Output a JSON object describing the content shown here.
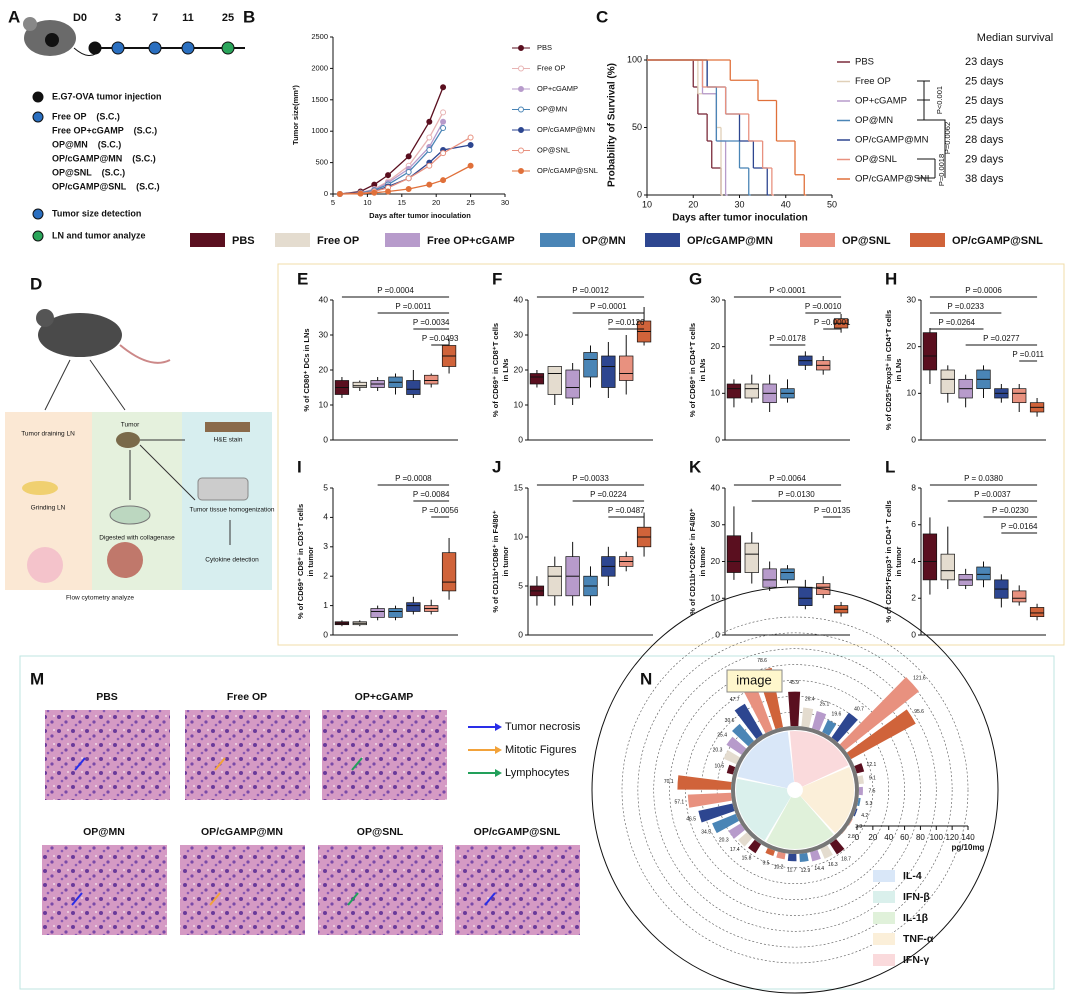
{
  "panel_labels": [
    "A",
    "B",
    "C",
    "D",
    "M",
    "N"
  ],
  "groups": [
    {
      "name": "PBS",
      "color": "#5a0f1f"
    },
    {
      "name": "Free OP",
      "color": "#e4dccf"
    },
    {
      "name": "Free OP+cGAMP",
      "color": "#b79bcb"
    },
    {
      "name": "OP@MN",
      "color": "#4a85b6"
    },
    {
      "name": "OP/cGAMP@MN",
      "color": "#2d4690"
    },
    {
      "name": "OP@SNL",
      "color": "#e8917f"
    },
    {
      "name": "OP/cGAMP@SNL",
      "color": "#d0633a"
    }
  ],
  "panel_a": {
    "timeline": [
      "D0",
      "3",
      "7",
      "11",
      "25"
    ],
    "legend": [
      "E.G7-OVA tumor injection",
      "Free OP    (S.C.)",
      "Free OP+cGAMP    (S.C.)",
      "OP@MN    (S.C.)",
      "OP/cGAMP@MN    (S.C.)",
      "OP@SNL    (S.C.)",
      "OP/cGAMP@SNL    (S.C.)",
      "Tumor size detection",
      "LN and tumor analyze"
    ]
  },
  "panel_b": {
    "type": "line",
    "ylabel": "Tumor size(mm³)",
    "xlabel": "Days after tumor inoculation",
    "x": [
      6,
      9,
      11,
      13,
      16,
      19,
      21,
      25
    ],
    "xlim": [
      5,
      30
    ],
    "xticks": [
      5,
      10,
      15,
      20,
      25,
      30
    ],
    "ylim": [
      0,
      2500
    ],
    "yticks": [
      0,
      500,
      1000,
      1500,
      2000,
      2500
    ],
    "series": [
      {
        "name": "PBS",
        "color": "#5a0f1f",
        "open": false,
        "values": [
          0,
          40,
          150,
          300,
          600,
          1150,
          1700,
          null
        ]
      },
      {
        "name": "Free OP",
        "color": "#e8b4b4",
        "open": true,
        "values": [
          0,
          20,
          80,
          200,
          450,
          900,
          1300,
          null
        ]
      },
      {
        "name": "OP+cGAMP",
        "color": "#b79bcb",
        "open": false,
        "values": [
          0,
          20,
          70,
          180,
          400,
          750,
          1150,
          null
        ]
      },
      {
        "name": "OP@MN",
        "color": "#4a85b6",
        "open": true,
        "values": [
          0,
          15,
          60,
          150,
          350,
          700,
          1050,
          null
        ]
      },
      {
        "name": "OP/cGAMP@MN",
        "color": "#2d4690",
        "open": false,
        "values": [
          0,
          10,
          40,
          120,
          250,
          500,
          700,
          780
        ]
      },
      {
        "name": "OP@SNL",
        "color": "#e8917f",
        "open": true,
        "values": [
          0,
          10,
          40,
          100,
          250,
          450,
          650,
          900
        ]
      },
      {
        "name": "OP/cGAMP@SNL",
        "color": "#e0703a",
        "open": false,
        "values": [
          0,
          5,
          20,
          40,
          80,
          150,
          220,
          450
        ]
      }
    ]
  },
  "panel_c": {
    "type": "survival",
    "ylabel": "Probability of Survival  (%)",
    "xlabel": "Days after tumor inoculation",
    "xlim": [
      10,
      50
    ],
    "xticks": [
      10,
      20,
      30,
      40,
      50
    ],
    "ylim": [
      0,
      100
    ],
    "yticks": [
      0,
      50,
      100
    ],
    "series": [
      {
        "name": "PBS",
        "color": "#7a2a3a",
        "x": [
          10,
          20,
          21,
          23,
          24,
          26
        ],
        "values": [
          100,
          80,
          60,
          40,
          20,
          0
        ]
      },
      {
        "name": "Free OP",
        "color": "#e0d0b8",
        "x": [
          10,
          21,
          25,
          26
        ],
        "values": [
          100,
          75,
          50,
          0
        ]
      },
      {
        "name": "OP+cGAMP",
        "color": "#b79bcb",
        "x": [
          10,
          22,
          25,
          27
        ],
        "values": [
          100,
          75,
          40,
          0
        ]
      },
      {
        "name": "OP@MN",
        "color": "#4a85b6",
        "x": [
          10,
          23,
          25,
          30,
          32
        ],
        "values": [
          100,
          80,
          40,
          20,
          0
        ]
      },
      {
        "name": "OP/cGAMP@MN",
        "color": "#2d4690",
        "x": [
          10,
          23,
          27,
          30,
          33,
          36
        ],
        "values": [
          100,
          80,
          60,
          40,
          20,
          0
        ]
      },
      {
        "name": "OP@SNL",
        "color": "#e8917f",
        "x": [
          10,
          22,
          27,
          32,
          35,
          37
        ],
        "values": [
          100,
          80,
          60,
          40,
          20,
          0
        ]
      },
      {
        "name": "OP/cGAMP@SNL",
        "color": "#e0703a",
        "x": [
          10,
          28,
          34,
          38,
          42,
          44
        ],
        "values": [
          100,
          85,
          70,
          40,
          15,
          0
        ]
      }
    ],
    "median_title": "Median survival",
    "median": [
      "23 days",
      "25 days",
      "25 days",
      "25 days",
      "28 days",
      "29 days",
      "38 days"
    ],
    "pvalues": [
      "P<0.001",
      "P=0.0062",
      "P=0.0018"
    ]
  },
  "panel_d": {
    "label": "D",
    "texts": [
      "Tumor draining LN",
      "Grinding LN",
      "Tumor",
      "Digested with collagenase",
      "H&E stain",
      "Tumor tissue homogenization",
      "Cytokine detection",
      "Flow cytometry analyze"
    ]
  },
  "box_panels": [
    {
      "label": "E",
      "type": "box",
      "ylabel": [
        "% of CD80⁺ DCs in LNs"
      ],
      "ylim": [
        0,
        40
      ],
      "yticks": [
        0,
        10,
        20,
        30,
        40
      ],
      "boxes": [
        [
          12,
          13,
          15,
          17,
          18
        ],
        [
          14,
          15,
          15.5,
          16.5,
          17
        ],
        [
          14,
          15,
          16,
          17,
          18
        ],
        [
          13,
          15,
          16.5,
          18,
          19
        ],
        [
          12,
          13,
          14.5,
          17,
          20
        ],
        [
          15,
          16,
          17,
          18.5,
          19
        ],
        [
          19,
          21,
          24,
          27,
          29
        ]
      ],
      "pvalues": [
        "P =0.0004",
        "P =0.0011",
        "P =0.0034",
        "P =0.0493"
      ]
    },
    {
      "label": "F",
      "type": "box",
      "ylabel": [
        "% of CD69⁺ in CD8⁺T cells",
        "in LNs"
      ],
      "ylim": [
        0,
        40
      ],
      "yticks": [
        0,
        10,
        20,
        30,
        40
      ],
      "boxes": [
        [
          15,
          16,
          18,
          19,
          20
        ],
        [
          10,
          13,
          19,
          21,
          21
        ],
        [
          10,
          12,
          15,
          20,
          22
        ],
        [
          15,
          18,
          23,
          25,
          27
        ],
        [
          12,
          15,
          21,
          24,
          28
        ],
        [
          13,
          17,
          19,
          24,
          30
        ],
        [
          27,
          28,
          31,
          34,
          38
        ]
      ],
      "pvalues": [
        "P =0.0012",
        "P =0.0001",
        "P =0.0126"
      ]
    },
    {
      "label": "G",
      "type": "box",
      "ylabel": [
        "% of CD69⁺ in CD4⁺T cells",
        "in LNs"
      ],
      "ylim": [
        0,
        30
      ],
      "yticks": [
        0,
        10,
        20,
        30
      ],
      "boxes": [
        [
          7,
          9,
          11,
          12,
          13
        ],
        [
          8,
          9,
          11,
          12,
          14
        ],
        [
          6,
          8,
          10,
          12,
          14
        ],
        [
          8,
          9,
          10,
          11,
          13
        ],
        [
          15,
          16,
          17,
          18,
          19
        ],
        [
          14,
          15,
          16,
          17,
          18
        ],
        [
          23,
          24,
          25,
          26,
          27
        ]
      ],
      "pvalues": [
        "P <0.0001",
        "P =0.0010",
        "P =0.0001",
        "P =0.0178"
      ]
    },
    {
      "label": "H",
      "type": "box",
      "ylabel": [
        "% of CD25⁺Foxp3⁺ in CD4⁺T cells",
        "in LNs"
      ],
      "ylim": [
        0,
        30
      ],
      "yticks": [
        0,
        10,
        20,
        30
      ],
      "boxes": [
        [
          12,
          15,
          18,
          23,
          24
        ],
        [
          8,
          10,
          13,
          15,
          16
        ],
        [
          7,
          9,
          11,
          13,
          14
        ],
        [
          9,
          11,
          13,
          15,
          16
        ],
        [
          8,
          9,
          10,
          11,
          12
        ],
        [
          6,
          8,
          10,
          11,
          12
        ],
        [
          5,
          6,
          7,
          8,
          9
        ]
      ],
      "pvalues": [
        "P =0.0006",
        "P =0.0233",
        "P =0.0264",
        "P =0.0277",
        "P =0.011"
      ]
    },
    {
      "label": "I",
      "type": "box",
      "ylabel": [
        "% of CD69⁺ CD8⁺ in CD3⁺T cells",
        "in tumor"
      ],
      "ylim": [
        0,
        5
      ],
      "yticks": [
        0,
        1,
        2,
        3,
        4,
        5
      ],
      "boxes": [
        [
          0.3,
          0.35,
          0.4,
          0.45,
          0.5
        ],
        [
          0.3,
          0.35,
          0.4,
          0.45,
          0.5
        ],
        [
          0.5,
          0.6,
          0.8,
          0.9,
          1
        ],
        [
          0.5,
          0.6,
          0.8,
          0.9,
          1
        ],
        [
          0.7,
          0.8,
          1,
          1.1,
          1.3
        ],
        [
          0.7,
          0.8,
          0.9,
          1,
          1.2
        ],
        [
          1.2,
          1.5,
          1.8,
          2.8,
          3.3
        ]
      ],
      "pvalues": [
        "P =0.0008",
        "P =0.0084",
        "P =0.0056"
      ]
    },
    {
      "label": "J",
      "type": "box",
      "ylabel": [
        "% of CD11b⁺CD86⁺ in F4/80⁺",
        "in tumor"
      ],
      "ylim": [
        0,
        15
      ],
      "yticks": [
        0,
        5,
        10,
        15
      ],
      "boxes": [
        [
          3,
          4,
          4.5,
          5,
          6
        ],
        [
          3,
          4,
          6,
          7,
          8
        ],
        [
          3,
          4,
          6,
          8,
          9.5
        ],
        [
          3,
          4,
          5,
          6,
          7
        ],
        [
          5,
          6,
          7,
          8,
          9
        ],
        [
          6.5,
          7,
          7.5,
          8,
          8.5
        ],
        [
          8,
          9,
          10,
          11,
          12.5
        ]
      ],
      "pvalues": [
        "P =0.0033",
        "P =0.0224",
        "P =0.0487"
      ]
    },
    {
      "label": "K",
      "type": "box",
      "ylabel": [
        "% of CD11b⁺CD206⁺ in F4/80⁺",
        "in tumor"
      ],
      "ylim": [
        0,
        40
      ],
      "yticks": [
        0,
        10,
        20,
        30,
        40
      ],
      "boxes": [
        [
          15,
          17,
          20,
          27,
          35
        ],
        [
          14,
          17,
          22,
          25,
          28
        ],
        [
          12,
          13,
          15,
          18,
          20
        ],
        [
          14,
          15,
          17,
          18,
          19
        ],
        [
          7,
          8,
          10,
          13,
          15
        ],
        [
          10,
          11,
          13,
          14,
          16
        ],
        [
          5,
          6,
          7,
          8,
          9
        ]
      ],
      "pvalues": [
        "P =0.0064",
        "P =0.0130",
        "P =0.0135"
      ]
    },
    {
      "label": "L",
      "type": "box",
      "ylabel": [
        "% of CD25⁺Foxp3⁺ in CD4⁺ T cells",
        "in tumor"
      ],
      "ylim": [
        0,
        8
      ],
      "yticks": [
        0,
        2,
        4,
        6,
        8
      ],
      "boxes": [
        [
          2.2,
          3,
          4,
          5.5,
          6.4
        ],
        [
          2.5,
          3,
          3.5,
          4.4,
          5.9
        ],
        [
          2.5,
          2.7,
          3,
          3.3,
          3.6
        ],
        [
          2.6,
          3,
          3.3,
          3.7,
          4
        ],
        [
          1.5,
          2,
          2.5,
          3,
          3.3
        ],
        [
          1.6,
          1.8,
          2,
          2.4,
          2.7
        ],
        [
          0.8,
          1,
          1.2,
          1.5,
          1.7
        ]
      ],
      "pvalues": [
        "P = 0.0380",
        "P =0.0037",
        "P =0.0230",
        "P =0.0164"
      ]
    }
  ],
  "panel_m": {
    "titles": [
      "PBS",
      "Free OP",
      "OP+cGAMP",
      "OP@MN",
      "OP/cGAMP@MN",
      "OP@SNL",
      "OP/cGAMP@SNL"
    ],
    "legend": [
      {
        "label": "Tumor necrosis",
        "color": "#2a2ee8"
      },
      {
        "label": "Mitotic Figures",
        "color": "#f2a23a"
      },
      {
        "label": "Lymphocytes",
        "color": "#22a05a"
      }
    ]
  },
  "panel_n": {
    "type": "radial-bar",
    "image_tag": "image",
    "rticks": [
      0,
      20,
      40,
      60,
      80,
      100,
      120,
      140
    ],
    "unit": "pg/10mg",
    "sectors": [
      {
        "name": "IFN-γ",
        "color": "#fadadc",
        "values": [
          45.9,
          26.4,
          25.1,
          19.6,
          40.7,
          121.6,
          95.6
        ]
      },
      {
        "name": "TNF-α",
        "color": "#fbefd9",
        "values": [
          12.1,
          9.1,
          7.5,
          5.3,
          4.2,
          3.3,
          2.8
        ]
      },
      {
        "name": "IL-1β",
        "color": "#e0f1da",
        "values": [
          18.7,
          16.3,
          14.4,
          12.9,
          11.7,
          10.2,
          9.5
        ]
      },
      {
        "name": "IFN-β",
        "color": "#daf0ec",
        "values": [
          15.8,
          17.4,
          20.3,
          34.5,
          46.5,
          57.1,
          70.1
        ]
      },
      {
        "name": "IL-4",
        "color": "#d9e7f8",
        "values": [
          10.5,
          20.3,
          25.4,
          30.6,
          47.7,
          61.6,
          78.6
        ]
      }
    ]
  }
}
